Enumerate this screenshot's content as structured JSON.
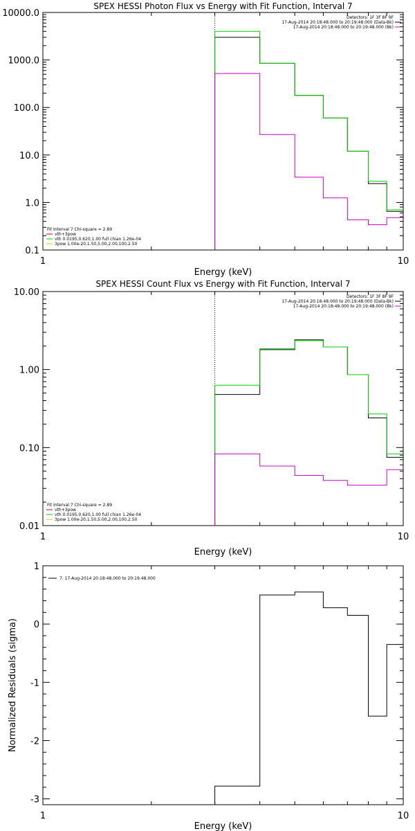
{
  "chart_data": [
    {
      "type": "line",
      "title": "SPEX HESSI Photon Flux vs Energy with Fit Function, Interval 7",
      "xlabel": "Energy (keV)",
      "ylabel": "",
      "xscale": "log",
      "yscale": "log",
      "xlim": [
        1,
        10
      ],
      "ylim": [
        0.1,
        10000
      ],
      "x_ticks": [
        "1",
        "10"
      ],
      "y_ticks": [
        "0.1",
        "1.0",
        "10.0",
        "100.0",
        "1000.0",
        "10000.0"
      ],
      "vline": 3,
      "legend_topright": [
        {
          "text": "Detectors: 1F 3F 8F 9F",
          "color": "#000000"
        },
        {
          "text": "17-Aug-2014 20:18:48.000 to 20:19:48.000 (Data-Bk)",
          "color": "#000000"
        },
        {
          "text": "17-Aug-2014 20:18:48.000 to 20:19:48.000 (Bk)",
          "color": "#cc00cc"
        }
      ],
      "legend_bottomleft": [
        {
          "text": "Fit Interval 7   Chi-square = 2.89",
          "color": "#000000"
        },
        {
          "text": "vth+3pow",
          "color": "#cc0000"
        },
        {
          "text": "vth 0.0195,0.620,1.00  full chian 1.26e-04",
          "color": "#00cc00"
        },
        {
          "text": "3pow 1.00e-20,1.50,5.00,2.00,100,2.50",
          "color": "#cccc00"
        }
      ],
      "series": [
        {
          "color": "#000000",
          "edges": [
            3,
            4,
            5,
            6,
            7,
            8,
            9,
            10
          ],
          "values": [
            3000,
            850,
            180,
            60,
            12,
            2.5,
            0.65
          ]
        },
        {
          "color": "#00cc00",
          "edges": [
            3,
            4,
            5,
            6,
            7,
            8,
            9,
            10
          ],
          "values": [
            4000,
            850,
            180,
            60,
            12,
            2.8,
            0.7
          ]
        },
        {
          "color": "#cc00cc",
          "edges": [
            3,
            4,
            5,
            6,
            7,
            8,
            9,
            10
          ],
          "values": [
            520,
            27,
            3.4,
            1.25,
            0.43,
            0.34,
            0.48
          ]
        }
      ]
    },
    {
      "type": "line",
      "title": "SPEX HESSI Count Flux vs Energy with Fit Function, Interval 7",
      "xlabel": "Energy (keV)",
      "ylabel": "",
      "xscale": "log",
      "yscale": "log",
      "xlim": [
        1,
        10
      ],
      "ylim": [
        0.01,
        10
      ],
      "x_ticks": [
        "1",
        "10"
      ],
      "y_ticks": [
        "0.01",
        "0.10",
        "1.00",
        "10.00"
      ],
      "vline": 3,
      "legend_topright": [
        {
          "text": "Detectors: 1F 3F 8F 9F",
          "color": "#000000"
        },
        {
          "text": "17-Aug-2014 20:18:48.000 to 20:19:48.000 (Data-Bk)",
          "color": "#000000"
        },
        {
          "text": "17-Aug-2014 20:18:48.000 to 20:19:48.000 (Bk)",
          "color": "#cc00cc"
        }
      ],
      "legend_bottomleft": [
        {
          "text": "Fit Interval 7   Chi-square = 2.89",
          "color": "#000000"
        },
        {
          "text": "vth+3pow",
          "color": "#cc0000"
        },
        {
          "text": "vth 0.0195,0.620,1.00  full chian 1.26e-04",
          "color": "#00cc00"
        },
        {
          "text": "3pow 1.00e-20,1.50,5.00,2.00,100,2.50",
          "color": "#cccc00"
        }
      ],
      "series": [
        {
          "color": "#000000",
          "edges": [
            3,
            4,
            5,
            6,
            7,
            8,
            9,
            10
          ],
          "values": [
            0.48,
            1.8,
            2.4,
            1.95,
            0.86,
            0.24,
            0.075
          ]
        },
        {
          "color": "#00cc00",
          "edges": [
            3,
            4,
            5,
            6,
            7,
            8,
            9,
            10
          ],
          "values": [
            0.63,
            1.85,
            2.35,
            1.95,
            0.86,
            0.27,
            0.083
          ]
        },
        {
          "color": "#cc00cc",
          "edges": [
            3,
            4,
            5,
            6,
            7,
            8,
            9,
            10
          ],
          "values": [
            0.083,
            0.058,
            0.044,
            0.038,
            0.033,
            0.033,
            0.052
          ]
        }
      ]
    },
    {
      "type": "line",
      "title": "",
      "xlabel": "Energy (keV)",
      "ylabel": "Normalized Residuals (sigma)",
      "xscale": "log",
      "yscale": "linear",
      "xlim": [
        1,
        10
      ],
      "ylim": [
        -3.1,
        1
      ],
      "x_ticks": [
        "1",
        "10"
      ],
      "y_ticks": [
        "1",
        "0",
        "-1",
        "-2",
        "-3"
      ],
      "legend_topleft": [
        {
          "text": "7. 17-Aug-2014 20:18:48.000 to 20:19:48.000",
          "color": "#000000"
        }
      ],
      "series": [
        {
          "color": "#000000",
          "edges": [
            3,
            4,
            5,
            6,
            7,
            8,
            9,
            10
          ],
          "values": [
            -2.78,
            0.5,
            0.55,
            0.28,
            0.15,
            -1.58,
            -0.35
          ]
        }
      ]
    }
  ]
}
